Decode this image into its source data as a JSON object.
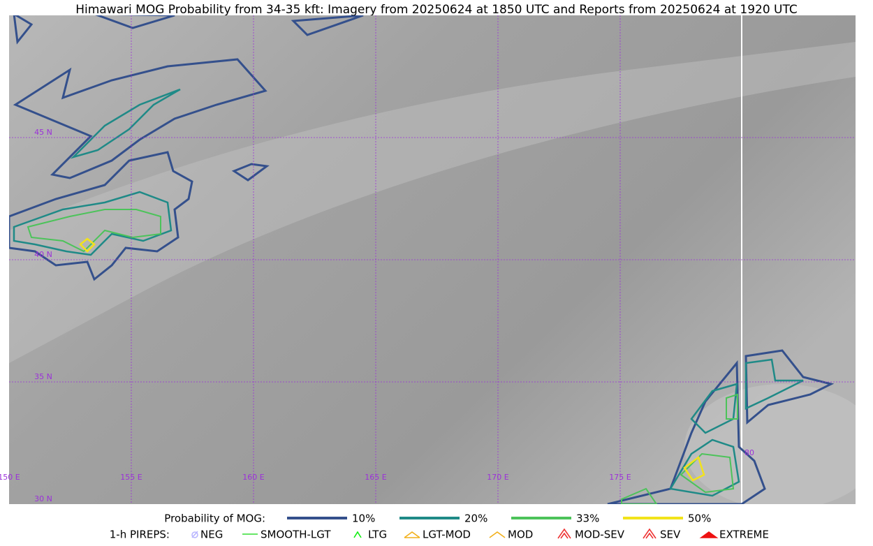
{
  "title": "Himawari MOG Probability from 34-35 kft: Imagery from 20250624 at 1850 UTC and Reports from 20250624 at 1920 UTC",
  "map": {
    "lat_labels": [
      "45 N",
      "40 N",
      "35 N",
      "30 N"
    ],
    "lon_labels": [
      "150 E",
      "155 E",
      "160 E",
      "165 E",
      "170 E",
      "175 E",
      "80"
    ]
  },
  "legend": {
    "probability": {
      "title": "Probability of MOG:",
      "items": [
        {
          "label": "10%",
          "color": "#34508c"
        },
        {
          "label": "20%",
          "color": "#1f8a87"
        },
        {
          "label": "33%",
          "color": "#4cc35a"
        },
        {
          "label": "50%",
          "color": "#f2e31b"
        }
      ]
    },
    "pireps": {
      "title": "1-h PIREPS:",
      "items": [
        {
          "label": "NEG",
          "color": "#b9b6ff"
        },
        {
          "label": "SMOOTH-LGT",
          "color": "#33dd33"
        },
        {
          "label": "LTG",
          "color": "#11ee11"
        },
        {
          "label": "LGT-MOD",
          "color": "#f2b01b"
        },
        {
          "label": "MOD",
          "color": "#f2b01b"
        },
        {
          "label": "MOD-SEV",
          "color": "#ee3333"
        },
        {
          "label": "SEV",
          "color": "#ee3333"
        },
        {
          "label": "EXTREME",
          "color": "#ee1111"
        }
      ]
    }
  }
}
